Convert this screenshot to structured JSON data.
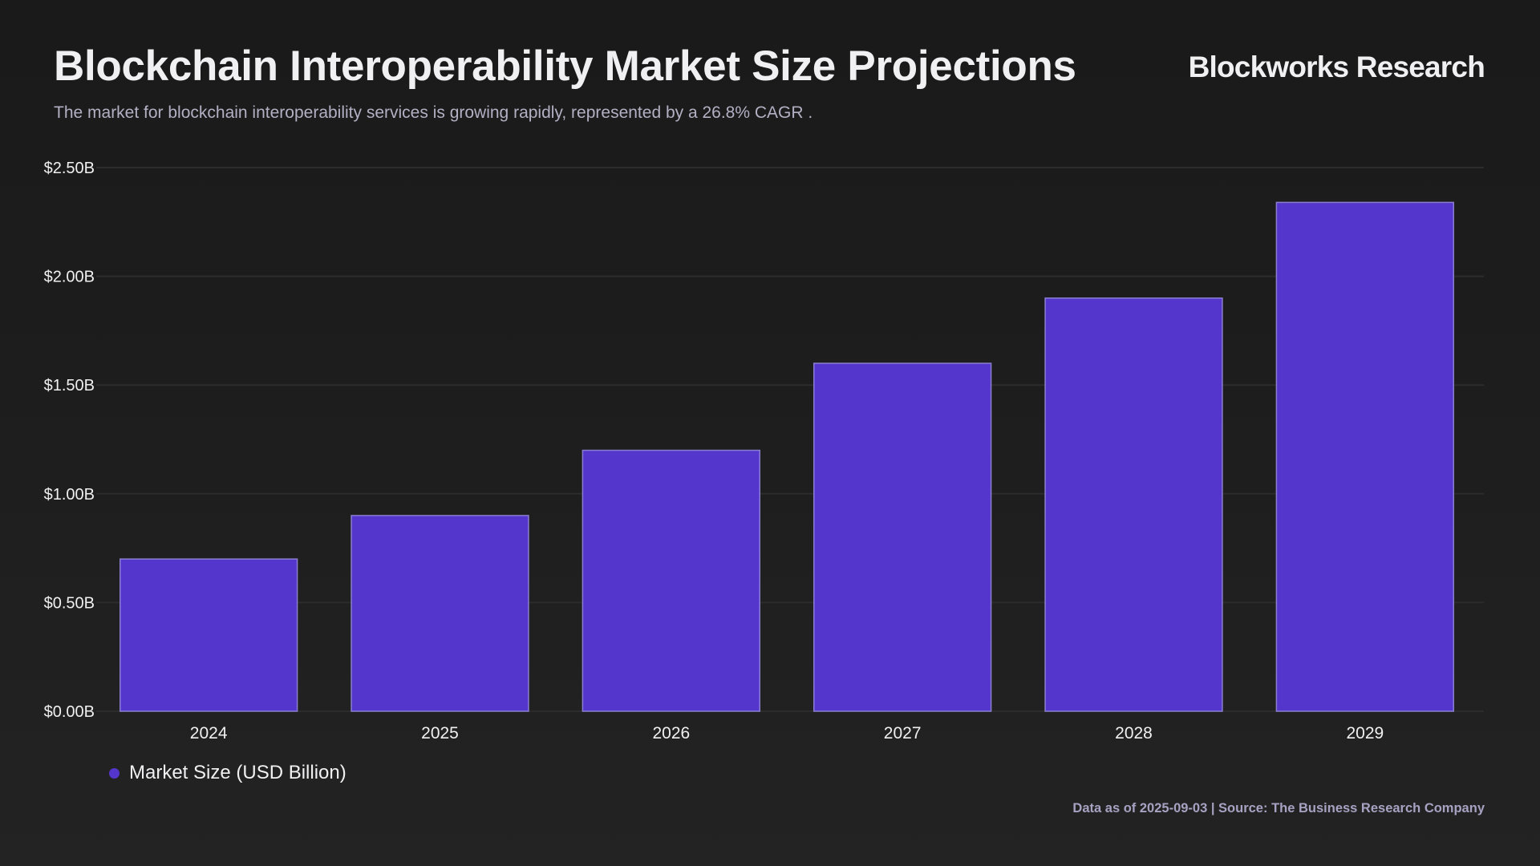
{
  "header": {
    "title": "Blockchain Interoperability Market Size Projections",
    "brand": "Blockworks Research",
    "subtitle": "The market for blockchain interoperability services is growing rapidly, represented by a 26.8% CAGR ."
  },
  "footer": {
    "source_text": "Data as of 2025-09-03 | Source: The Business Research Company"
  },
  "colors": {
    "bar": "#5436cc",
    "bar_border": "#8a7fcf",
    "background": "#1c1c1c",
    "text": "#f0f0f2",
    "muted_text": "#a7a2c2"
  },
  "chart_data": {
    "type": "bar",
    "title": "Blockchain Interoperability Market Size Projections",
    "subtitle": "The market for blockchain interoperability services is growing rapidly, represented by a 26.8% CAGR .",
    "xlabel": "",
    "ylabel": "",
    "categories": [
      "2024",
      "2025",
      "2026",
      "2027",
      "2028",
      "2029"
    ],
    "series": [
      {
        "name": "Market Size (USD Billion)",
        "color": "#5436cc",
        "values": [
          0.7,
          0.9,
          1.2,
          1.6,
          1.9,
          2.34
        ]
      }
    ],
    "ylim": [
      0,
      2.5
    ],
    "yticks": [
      0,
      0.5,
      1.0,
      1.5,
      2.0,
      2.5
    ],
    "ytick_labels": [
      "$0.00B",
      "$0.50B",
      "$1.00B",
      "$1.50B",
      "$2.00B",
      "$2.50B"
    ],
    "grid": true,
    "legend": {
      "position": "bottom-left",
      "entries": [
        "Market Size (USD Billion)"
      ]
    }
  }
}
